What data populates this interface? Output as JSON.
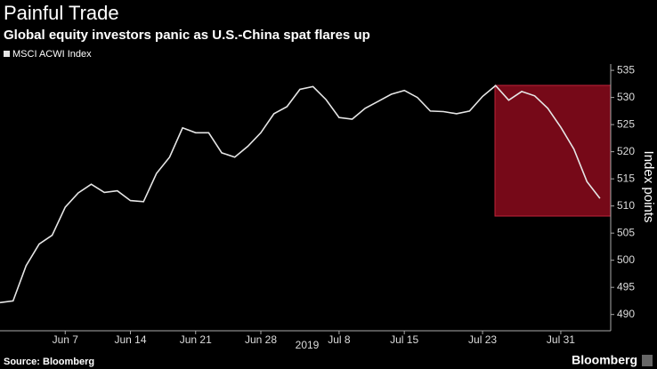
{
  "chart_data": {
    "type": "line",
    "title": "Painful Trade",
    "subtitle": "Global equity investors panic as U.S.-China spat flares up",
    "y_axis_label": "Index points",
    "x_axis_label": "2019",
    "source": "Source: Bloomberg",
    "brand": "Bloomberg",
    "categories": [
      null,
      null,
      null,
      null,
      null,
      "Jun 7",
      null,
      null,
      null,
      null,
      "Jun 14",
      null,
      null,
      null,
      null,
      "Jun 21",
      null,
      null,
      null,
      null,
      "Jun 28",
      null,
      null,
      null,
      null,
      null,
      "Jul 8",
      null,
      null,
      null,
      null,
      "Jul 15",
      null,
      null,
      null,
      null,
      null,
      "Jul 23",
      null,
      null,
      null,
      null,
      null,
      "Jul 31",
      null,
      null,
      null
    ],
    "series": [
      {
        "name": "MSCI ACWI Index",
        "color": "#e6e6e6",
        "values": [
          492.2,
          492.5,
          499,
          503,
          504.6,
          509.8,
          512.4,
          514,
          512.5,
          512.8,
          511,
          510.8,
          516,
          519,
          524.4,
          523.5,
          523.5,
          519.8,
          519,
          521,
          523.5,
          527,
          528.3,
          531.5,
          532,
          529.6,
          526.3,
          526,
          528,
          529.3,
          530.6,
          531.3,
          530,
          527.5,
          527.4,
          527,
          527.5,
          530.2,
          532.2,
          529.5,
          531.1,
          530.3,
          528,
          524.5,
          520.5,
          514.5,
          511.4
        ]
      }
    ],
    "ylim": [
      487,
      536
    ],
    "yticks": [
      490,
      495,
      500,
      505,
      510,
      515,
      520,
      525,
      530,
      535
    ]
  }
}
